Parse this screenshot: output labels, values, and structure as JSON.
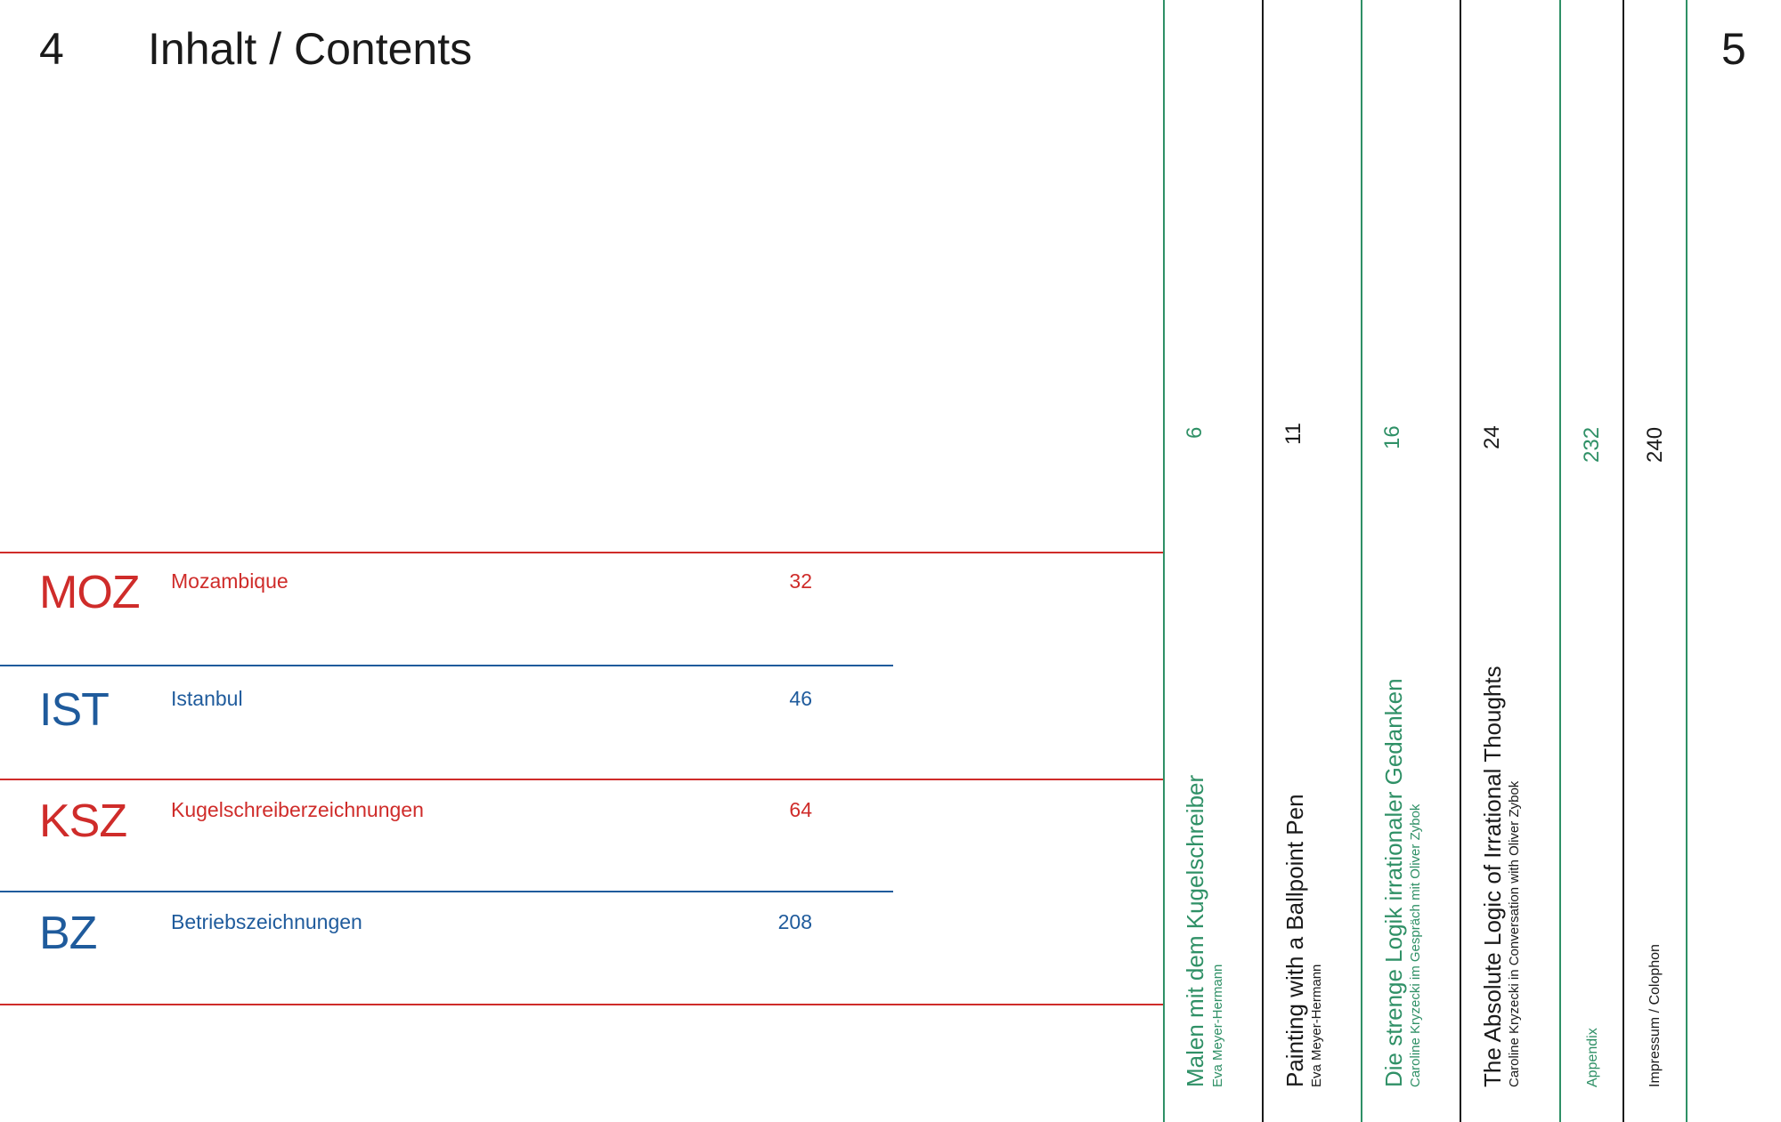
{
  "header": {
    "left_page_number": "4",
    "title": "Inhalt / Contents",
    "right_page_number": "5"
  },
  "sections": [
    {
      "code": "MOZ",
      "label": "Mozambique",
      "page": "32"
    },
    {
      "code": "IST",
      "label": "Istanbul",
      "page": "46"
    },
    {
      "code": "KSZ",
      "label": "Kugelschreiberzeichnungen",
      "page": "64"
    },
    {
      "code": "BZ",
      "label": "Betriebszeichnungen",
      "page": "208"
    }
  ],
  "essays": [
    {
      "page": "6",
      "title": "Malen mit dem Kugelschreiber",
      "author": "Eva Meyer-Hermann"
    },
    {
      "page": "11",
      "title": "Painting with a Ballpoint Pen",
      "author": "Eva Meyer-Hermann"
    },
    {
      "page": "16",
      "title": "Die strenge Logik irrationaler Gedanken",
      "author": "Caroline Kryzecki im Gespräch mit Oliver Zybok"
    },
    {
      "page": "24",
      "title": "The Absolute Logic of Irrational Thoughts",
      "author": "Caroline Kryzecki in Conversation with Oliver Zybok"
    },
    {
      "page": "232",
      "title": "Appendix"
    },
    {
      "page": "240",
      "title": "Impressum / Colophon"
    }
  ],
  "colors": {
    "red": "#cf2c2a",
    "blue": "#1f5b9c",
    "green": "#2f9066",
    "black": "#1a1a1a"
  }
}
